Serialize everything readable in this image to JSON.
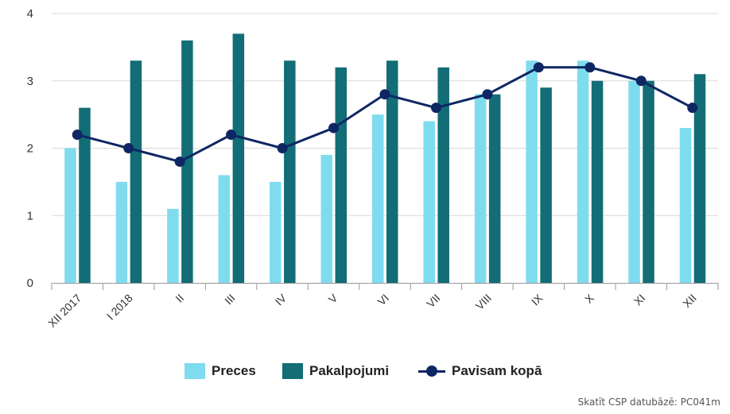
{
  "colors": {
    "preces": "#7fdcee",
    "pakalpojumi": "#126d76",
    "pavisam": "#0e2764"
  },
  "chart_data": {
    "type": "bar",
    "categories": [
      "XII 2017",
      "I 2018",
      "II",
      "III",
      "IV",
      "V",
      "VI",
      "VII",
      "VIII",
      "IX",
      "X",
      "XI",
      "XII"
    ],
    "series": [
      {
        "name": "Preces",
        "type": "bar",
        "values": [
          2.0,
          1.5,
          1.1,
          1.6,
          1.5,
          1.9,
          2.5,
          2.4,
          2.8,
          3.3,
          3.3,
          3.0,
          2.3
        ]
      },
      {
        "name": "Pakalpojumi",
        "type": "bar",
        "values": [
          2.6,
          3.3,
          3.6,
          3.7,
          3.3,
          3.2,
          3.3,
          3.2,
          2.8,
          2.9,
          3.0,
          3.0,
          3.1
        ]
      },
      {
        "name": "Pavisam kopā",
        "type": "line",
        "values": [
          2.2,
          2.0,
          1.8,
          2.2,
          2.0,
          2.3,
          2.8,
          2.6,
          2.8,
          3.2,
          3.2,
          3.0,
          2.6
        ]
      }
    ],
    "ylim": [
      0,
      4
    ],
    "yticks": [
      "0",
      "1",
      "2",
      "3",
      "4"
    ],
    "title": "",
    "xlabel": "",
    "ylabel": "",
    "grid": true,
    "legend_position": "bottom"
  },
  "legend": {
    "preces": "Preces",
    "pakalpojumi": "Pakalpojumi",
    "pavisam": "Pavisam kopā"
  },
  "source_note": "Skatīt CSP datubāzē: PC041m"
}
